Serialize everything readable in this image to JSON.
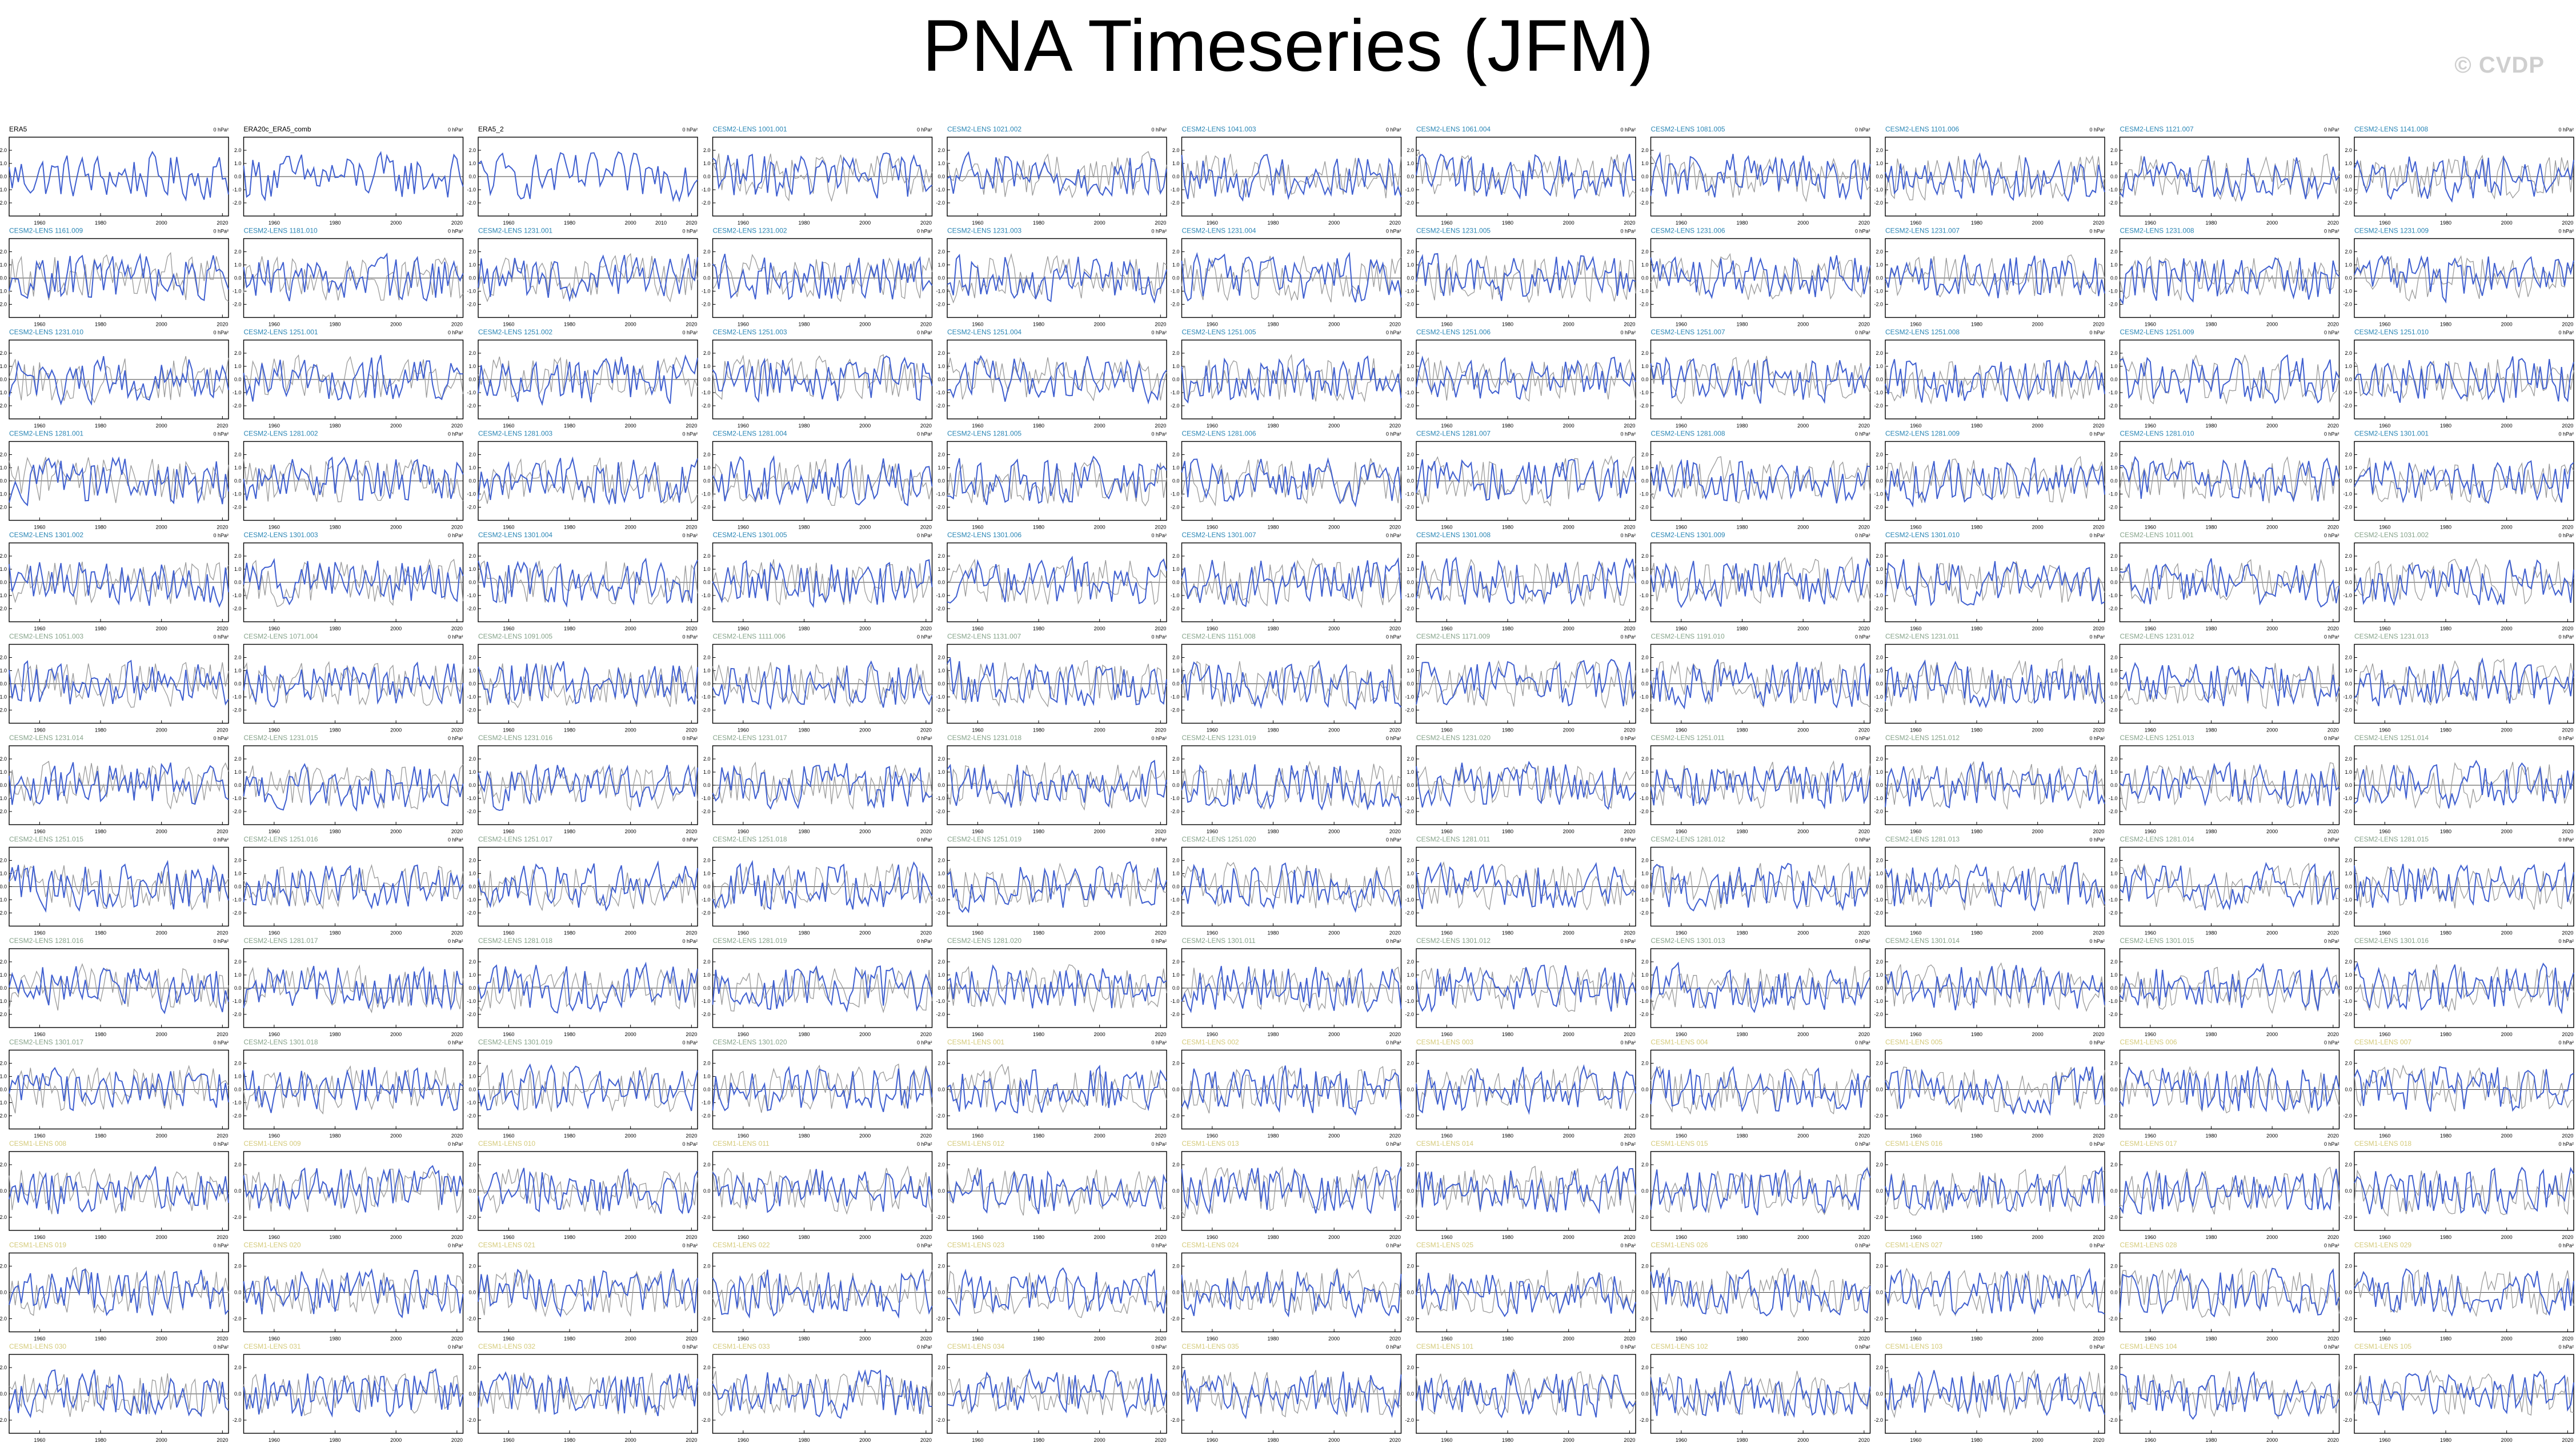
{
  "title": "PNA Timeseries (JFM)",
  "watermark": "© CVDP",
  "colors": {
    "model_line": "#3f5fd0",
    "obs_line": "#9a9a9a",
    "zero_line": "#000000",
    "title_obs": "#000000",
    "title_lens1": "#2a86b5",
    "title_lens1_late": "#86a38a",
    "title_lens2": "#d4ca7a"
  },
  "chart_data": {
    "type": "line",
    "layout": "grid of 13 rows x 11 columns of small-multiple panels",
    "units_label": "0 hPa²",
    "x_ticks": [
      "1960",
      "1980",
      "2000",
      "2020"
    ],
    "x_ticks_obs_era5_2": [
      "1960",
      "1980",
      "2000",
      "2010",
      "2020"
    ],
    "ylim": [
      -3.0,
      3.0
    ],
    "y_ticks": [
      "2.0",
      "1.0",
      "0.0",
      "-1.0",
      "-2.0"
    ],
    "y_ticks_cesm1": [
      "2.0",
      "0.0",
      "-2.0"
    ],
    "grid": false,
    "series_colors": {
      "model": "#3f5fd0",
      "observed_overlay": "#9a9a9a"
    },
    "panels": [
      "ERA5",
      "ERA20c_ERA5_comb",
      "ERA5_2",
      "CESM2-LENS 1001.001",
      "CESM2-LENS 1021.002",
      "CESM2-LENS 1041.003",
      "CESM2-LENS 1061.004",
      "CESM2-LENS 1081.005",
      "CESM2-LENS 1101.006",
      "CESM2-LENS 1121.007",
      "CESM2-LENS 1141.008",
      "CESM2-LENS 1161.009",
      "CESM2-LENS 1181.010",
      "CESM2-LENS 1231.001",
      "CESM2-LENS 1231.002",
      "CESM2-LENS 1231.003",
      "CESM2-LENS 1231.004",
      "CESM2-LENS 1231.005",
      "CESM2-LENS 1231.006",
      "CESM2-LENS 1231.007",
      "CESM2-LENS 1231.008",
      "CESM2-LENS 1231.009",
      "CESM2-LENS 1231.010",
      "CESM2-LENS 1251.001",
      "CESM2-LENS 1251.002",
      "CESM2-LENS 1251.003",
      "CESM2-LENS 1251.004",
      "CESM2-LENS 1251.005",
      "CESM2-LENS 1251.006",
      "CESM2-LENS 1251.007",
      "CESM2-LENS 1251.008",
      "CESM2-LENS 1251.009",
      "CESM2-LENS 1251.010",
      "CESM2-LENS 1281.001",
      "CESM2-LENS 1281.002",
      "CESM2-LENS 1281.003",
      "CESM2-LENS 1281.004",
      "CESM2-LENS 1281.005",
      "CESM2-LENS 1281.006",
      "CESM2-LENS 1281.007",
      "CESM2-LENS 1281.008",
      "CESM2-LENS 1281.009",
      "CESM2-LENS 1281.010",
      "CESM2-LENS 1301.001",
      "CESM2-LENS 1301.002",
      "CESM2-LENS 1301.003",
      "CESM2-LENS 1301.004",
      "CESM2-LENS 1301.005",
      "CESM2-LENS 1301.006",
      "CESM2-LENS 1301.007",
      "CESM2-LENS 1301.008",
      "CESM2-LENS 1301.009",
      "CESM2-LENS 1301.010",
      "CESM2-LENS 1011.001",
      "CESM2-LENS 1031.002",
      "CESM2-LENS 1051.003",
      "CESM2-LENS 1071.004",
      "CESM2-LENS 1091.005",
      "CESM2-LENS 1111.006",
      "CESM2-LENS 1131.007",
      "CESM2-LENS 1151.008",
      "CESM2-LENS 1171.009",
      "CESM2-LENS 1191.010",
      "CESM2-LENS 1231.011",
      "CESM2-LENS 1231.012",
      "CESM2-LENS 1231.013",
      "CESM2-LENS 1231.014",
      "CESM2-LENS 1231.015",
      "CESM2-LENS 1231.016",
      "CESM2-LENS 1231.017",
      "CESM2-LENS 1231.018",
      "CESM2-LENS 1231.019",
      "CESM2-LENS 1231.020",
      "CESM2-LENS 1251.011",
      "CESM2-LENS 1251.012",
      "CESM2-LENS 1251.013",
      "CESM2-LENS 1251.014",
      "CESM2-LENS 1251.015",
      "CESM2-LENS 1251.016",
      "CESM2-LENS 1251.017",
      "CESM2-LENS 1251.018",
      "CESM2-LENS 1251.019",
      "CESM2-LENS 1251.020",
      "CESM2-LENS 1281.011",
      "CESM2-LENS 1281.012",
      "CESM2-LENS 1281.013",
      "CESM2-LENS 1281.014",
      "CESM2-LENS 1281.015",
      "CESM2-LENS 1281.016",
      "CESM2-LENS 1281.017",
      "CESM2-LENS 1281.018",
      "CESM2-LENS 1281.019",
      "CESM2-LENS 1281.020",
      "CESM2-LENS 1301.011",
      "CESM2-LENS 1301.012",
      "CESM2-LENS 1301.013",
      "CESM2-LENS 1301.014",
      "CESM2-LENS 1301.015",
      "CESM2-LENS 1301.016",
      "CESM2-LENS 1301.017",
      "CESM2-LENS 1301.018",
      "CESM2-LENS 1301.019",
      "CESM2-LENS 1301.020",
      "CESM1-LENS 001",
      "CESM1-LENS 002",
      "CESM1-LENS 003",
      "CESM1-LENS 004",
      "CESM1-LENS 005",
      "CESM1-LENS 006",
      "CESM1-LENS 007",
      "CESM1-LENS 008",
      "CESM1-LENS 009",
      "CESM1-LENS 010",
      "CESM1-LENS 011",
      "CESM1-LENS 012",
      "CESM1-LENS 013",
      "CESM1-LENS 014",
      "CESM1-LENS 015",
      "CESM1-LENS 016",
      "CESM1-LENS 017",
      "CESM1-LENS 018",
      "CESM1-LENS 019",
      "CESM1-LENS 020",
      "CESM1-LENS 021",
      "CESM1-LENS 022",
      "CESM1-LENS 023",
      "CESM1-LENS 024",
      "CESM1-LENS 025",
      "CESM1-LENS 026",
      "CESM1-LENS 027",
      "CESM1-LENS 028",
      "CESM1-LENS 029",
      "CESM1-LENS 030",
      "CESM1-LENS 031",
      "CESM1-LENS 032",
      "CESM1-LENS 033",
      "CESM1-LENS 034",
      "CESM1-LENS 035",
      "CESM1-LENS 101",
      "CESM1-LENS 102",
      "CESM1-LENS 103",
      "CESM1-LENS 104",
      "CESM1-LENS 105"
    ]
  }
}
